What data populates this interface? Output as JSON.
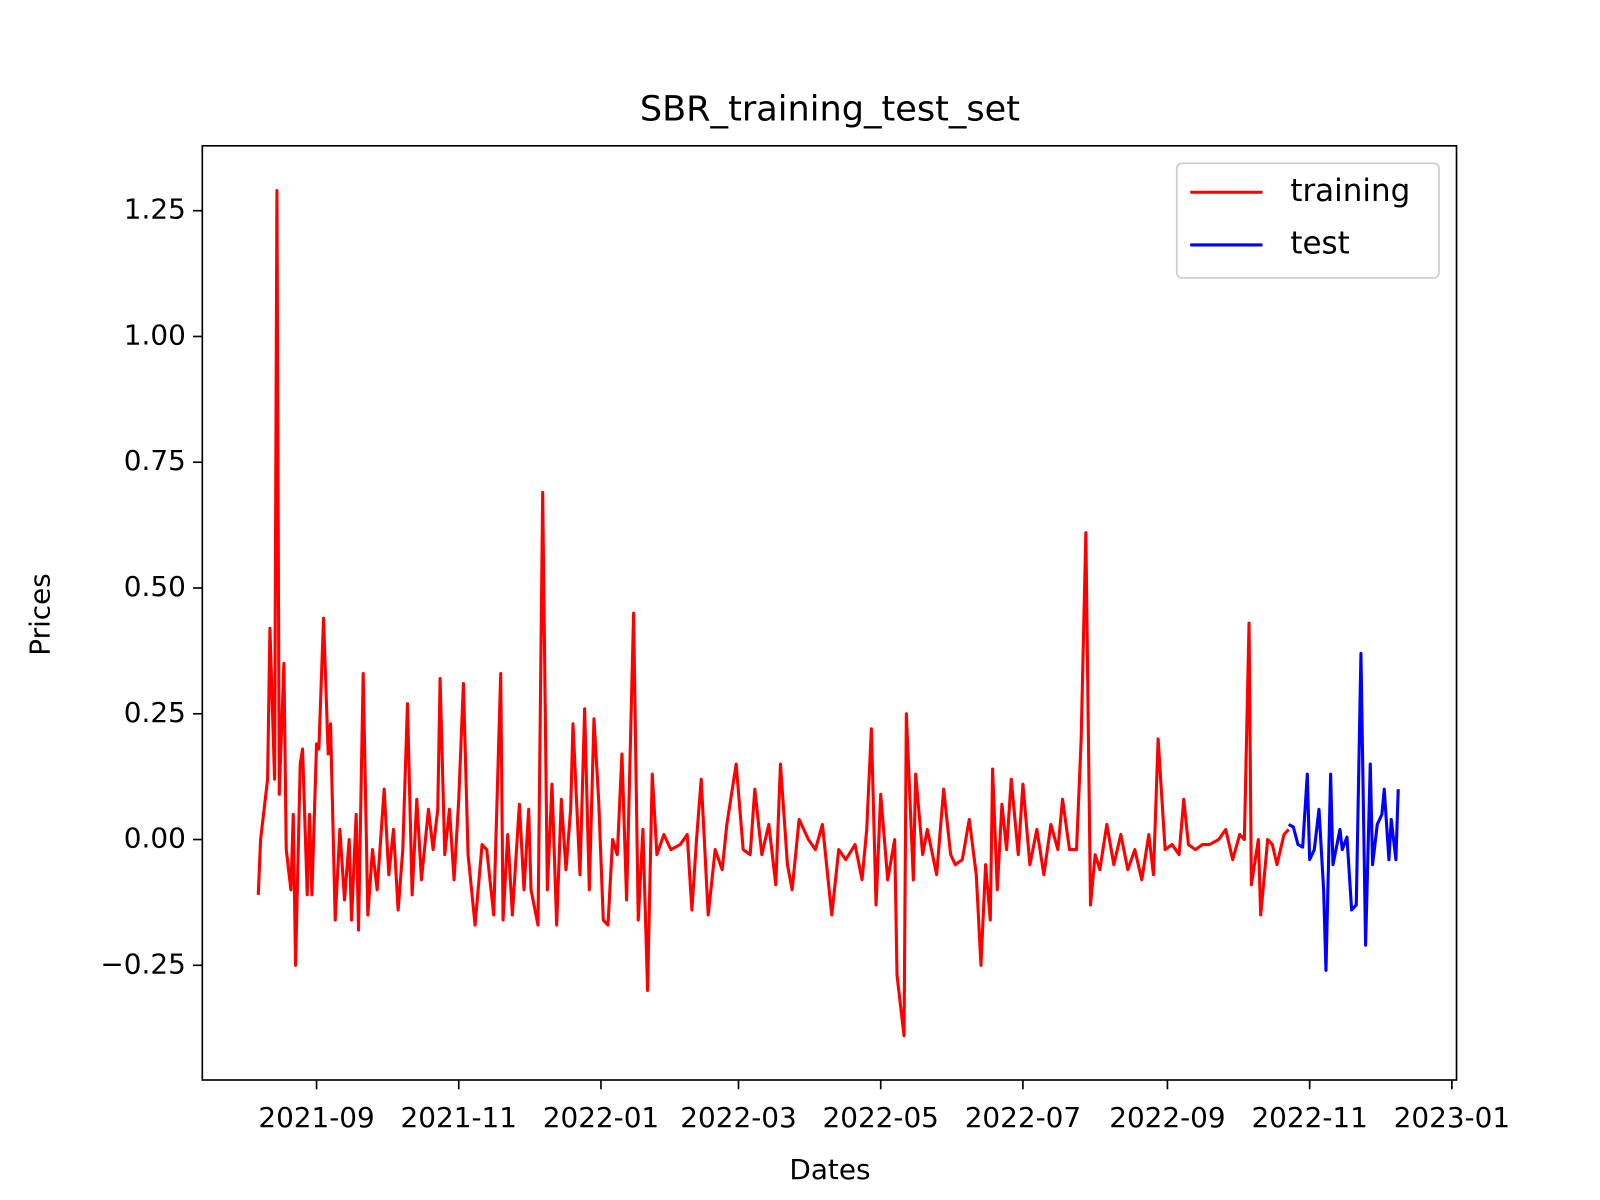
{
  "chart_data": {
    "type": "line",
    "title": "SBR_training_test_set",
    "x_label": "Dates",
    "y_label": "Prices",
    "legend": "upper right",
    "xlim": [
      18822,
      19360
    ],
    "xticks": [
      {
        "value": 18871,
        "label": "2021-09"
      },
      {
        "value": 18932,
        "label": "2021-11"
      },
      {
        "value": 18993,
        "label": "2022-01"
      },
      {
        "value": 19052,
        "label": "2022-03"
      },
      {
        "value": 19113,
        "label": "2022-05"
      },
      {
        "value": 19174,
        "label": "2022-07"
      },
      {
        "value": 19236,
        "label": "2022-09"
      },
      {
        "value": 19297,
        "label": "2022-11"
      },
      {
        "value": 19358,
        "label": "2023-01"
      }
    ],
    "ylim": [
      -0.478,
      1.379
    ],
    "yticks": [
      {
        "value": -0.25,
        "label": "−0.25"
      },
      {
        "value": 0,
        "label": "0.00"
      },
      0.25,
      {
        "value": 0.5,
        "label": "0.50"
      },
      0.75,
      {
        "value": 1,
        "label": "1.00"
      },
      1.25
    ],
    "series": [
      {
        "name": "training",
        "color": "#ff0000",
        "x": [
          18846,
          18847,
          18850,
          18851,
          18853,
          18854,
          18855,
          18857,
          18858,
          18860,
          18861,
          18862,
          18864,
          18865,
          18867,
          18868,
          18869,
          18871,
          18872,
          18874,
          18876,
          18877,
          18879,
          18881,
          18883,
          18885,
          18886,
          18888,
          18889,
          18891,
          18893,
          18895,
          18897,
          18900,
          18902,
          18904,
          18906,
          18908,
          18910,
          18912,
          18914,
          18916,
          18919,
          18921,
          18923,
          18924,
          18926,
          18928,
          18930,
          18932,
          18934,
          18936,
          18939,
          18942,
          18944,
          18947,
          18950,
          18951,
          18953,
          18955,
          18958,
          18960,
          18962,
          18963,
          18966,
          18968,
          18970,
          18972,
          18974,
          18976,
          18978,
          18980,
          18981,
          18984,
          18986,
          18988,
          18990,
          18992,
          18994,
          18996,
          18998,
          19000,
          19002,
          19004,
          19007,
          19009,
          19011,
          19013,
          19015,
          19017,
          19020,
          19023,
          19027,
          19030,
          19032,
          19034,
          19036,
          19039,
          19042,
          19045,
          19047,
          19051,
          19054,
          19057,
          19059,
          19062,
          19065,
          19068,
          19070,
          19073,
          19075,
          19078,
          19082,
          19085,
          19088,
          19092,
          19095,
          19098,
          19102,
          19105,
          19107,
          19109,
          19111,
          19113,
          19116,
          19119,
          19120,
          19123,
          19124,
          19127,
          19128,
          19131,
          19133,
          19137,
          19140,
          19143,
          19145,
          19148,
          19151,
          19154,
          19156,
          19158,
          19160,
          19161,
          19163,
          19165,
          19167,
          19169,
          19172,
          19174,
          19177,
          19180,
          19183,
          19186,
          19189,
          19191,
          19194,
          19197,
          19199,
          19201,
          19203,
          19205,
          19207,
          19210,
          19213,
          19216,
          19219,
          19222,
          19225,
          19228,
          19230,
          19232,
          19235,
          19238,
          19241,
          19243,
          19245,
          19248,
          19251,
          19254,
          19258,
          19261,
          19264,
          19267,
          19269,
          19271,
          19272,
          19275,
          19276,
          19279,
          19281,
          19283,
          19286,
          19288
        ],
        "values": [
          -0.11,
          0.0,
          0.12,
          0.42,
          0.12,
          1.29,
          0.09,
          0.35,
          -0.02,
          -0.1,
          0.05,
          -0.25,
          0.15,
          0.18,
          -0.11,
          0.05,
          -0.11,
          0.19,
          0.18,
          0.44,
          0.17,
          0.23,
          -0.16,
          0.02,
          -0.12,
          0.0,
          -0.16,
          0.05,
          -0.18,
          0.33,
          -0.15,
          -0.02,
          -0.1,
          0.1,
          -0.07,
          0.02,
          -0.14,
          -0.02,
          0.27,
          -0.11,
          0.08,
          -0.08,
          0.06,
          -0.02,
          0.06,
          0.32,
          -0.03,
          0.06,
          -0.08,
          0.08,
          0.31,
          -0.03,
          -0.17,
          -0.01,
          -0.02,
          -0.15,
          0.33,
          -0.16,
          0.01,
          -0.15,
          0.07,
          -0.1,
          0.06,
          -0.1,
          -0.17,
          0.69,
          -0.1,
          0.11,
          -0.17,
          0.08,
          -0.06,
          0.06,
          0.23,
          -0.07,
          0.26,
          -0.1,
          0.24,
          0.08,
          -0.16,
          -0.17,
          0.0,
          -0.03,
          0.17,
          -0.12,
          0.45,
          -0.16,
          0.02,
          -0.3,
          0.13,
          -0.03,
          0.01,
          -0.02,
          -0.01,
          0.01,
          -0.14,
          0.0,
          0.12,
          -0.15,
          -0.02,
          -0.06,
          0.03,
          0.15,
          -0.02,
          -0.03,
          0.1,
          -0.03,
          0.03,
          -0.09,
          0.15,
          -0.05,
          -0.1,
          0.04,
          0.0,
          -0.02,
          0.03,
          -0.15,
          -0.02,
          -0.04,
          -0.01,
          -0.08,
          0.02,
          0.22,
          -0.13,
          0.09,
          -0.08,
          0.0,
          -0.27,
          -0.39,
          0.25,
          -0.08,
          0.13,
          -0.03,
          0.02,
          -0.07,
          0.1,
          -0.03,
          -0.05,
          -0.04,
          0.04,
          -0.07,
          -0.25,
          -0.05,
          -0.16,
          0.14,
          -0.1,
          0.07,
          -0.02,
          0.12,
          -0.03,
          0.11,
          -0.05,
          0.02,
          -0.07,
          0.03,
          -0.02,
          0.08,
          -0.02,
          -0.02,
          0.2,
          0.61,
          -0.13,
          -0.03,
          -0.06,
          0.03,
          -0.05,
          0.01,
          -0.06,
          -0.02,
          -0.08,
          0.01,
          -0.07,
          0.2,
          -0.02,
          -0.01,
          -0.03,
          0.08,
          -0.01,
          -0.02,
          -0.01,
          -0.01,
          0.0,
          0.02,
          -0.04,
          0.01,
          0.0,
          0.43,
          -0.09,
          0.0,
          -0.15,
          0.0,
          -0.01,
          -0.05,
          0.01,
          0.02
        ]
      },
      {
        "name": "test",
        "color": "#0000ff",
        "x": [
          19288,
          19290,
          19292,
          19294,
          19296,
          19297,
          19299,
          19301,
          19303,
          19304,
          19306,
          19307,
          19310,
          19311,
          19313,
          19315,
          19317,
          19319,
          19321,
          19323,
          19324,
          19326,
          19328,
          19329,
          19331,
          19332,
          19334,
          19335
        ],
        "values": [
          0.03,
          0.025,
          -0.01,
          -0.015,
          0.13,
          -0.04,
          -0.02,
          0.06,
          -0.1,
          -0.26,
          0.13,
          -0.05,
          0.02,
          -0.02,
          0.005,
          -0.14,
          -0.13,
          0.37,
          -0.21,
          0.15,
          -0.05,
          0.03,
          0.05,
          0.1,
          -0.04,
          0.04,
          -0.04,
          0.1
        ]
      }
    ]
  }
}
